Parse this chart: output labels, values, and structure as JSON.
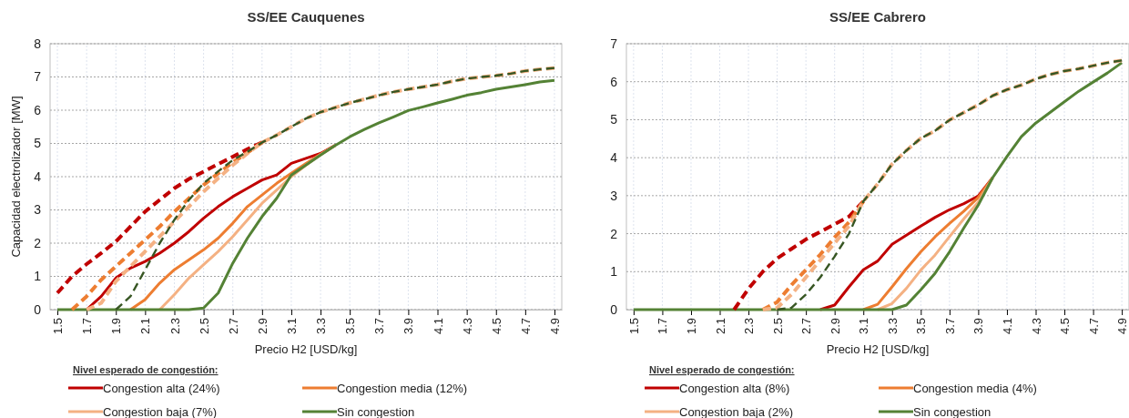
{
  "chart_data": [
    {
      "type": "line",
      "title": "SS/EE Cauquenes",
      "xlabel": "Precio H2 [USD/kg]",
      "ylabel": "Capacidad electrolizador [MW]",
      "legend_title": "Nivel esperado de congestión:",
      "legend": "bottom",
      "grid": true,
      "x": [
        1.5,
        1.6,
        1.7,
        1.8,
        1.9,
        2.0,
        2.1,
        2.2,
        2.3,
        2.4,
        2.5,
        2.6,
        2.7,
        2.8,
        2.9,
        3.0,
        3.1,
        3.2,
        3.3,
        3.4,
        3.5,
        3.6,
        3.7,
        3.8,
        3.9,
        4.0,
        4.1,
        4.2,
        4.3,
        4.4,
        4.5,
        4.6,
        4.7,
        4.8,
        4.9
      ],
      "xlim": [
        1.45,
        4.95
      ],
      "xticks": [
        1.5,
        1.7,
        1.9,
        2.1,
        2.3,
        2.5,
        2.7,
        2.9,
        3.1,
        3.3,
        3.5,
        3.7,
        3.9,
        4.1,
        4.3,
        4.5,
        4.7,
        4.9
      ],
      "ylim": [
        0,
        8
      ],
      "yticks": [
        0,
        1,
        2,
        3,
        4,
        5,
        6,
        7,
        8
      ],
      "series": [
        {
          "name": "Congestion alta (24%)",
          "color": "#c00000",
          "line_style": "solid",
          "values": [
            null,
            null,
            0,
            0.4,
            0.95,
            1.25,
            1.45,
            1.7,
            2.0,
            2.35,
            2.75,
            3.1,
            3.4,
            3.65,
            3.9,
            4.05,
            4.4,
            4.55,
            4.7,
            4.94,
            null,
            null,
            null,
            null,
            null,
            null,
            null,
            null,
            null,
            null,
            null,
            null,
            null,
            null,
            null
          ]
        },
        {
          "name": "Congestion media (12%)",
          "color": "#ed7d31",
          "line_style": "solid",
          "values": [
            null,
            null,
            null,
            null,
            null,
            0,
            0.3,
            0.8,
            1.2,
            1.5,
            1.8,
            2.15,
            2.6,
            3.1,
            3.45,
            3.8,
            4.1,
            4.4,
            4.68,
            4.94,
            null,
            null,
            null,
            null,
            null,
            null,
            null,
            null,
            null,
            null,
            null,
            null,
            null,
            null,
            null
          ]
        },
        {
          "name": "Congestion baja (7%)",
          "color": "#f4b183",
          "line_style": "solid",
          "values": [
            null,
            null,
            null,
            null,
            null,
            null,
            null,
            0,
            0.45,
            0.95,
            1.35,
            1.75,
            2.2,
            2.7,
            3.2,
            3.6,
            4.0,
            4.35,
            4.66,
            4.94,
            null,
            null,
            null,
            null,
            null,
            null,
            null,
            null,
            null,
            null,
            null,
            null,
            null,
            null,
            null
          ]
        },
        {
          "name": "Sin congestion",
          "color": "#548235",
          "line_style": "solid",
          "values": [
            0,
            0,
            0,
            0,
            0,
            0,
            0,
            0,
            0,
            0,
            0.05,
            0.5,
            1.4,
            2.15,
            2.8,
            3.35,
            4.05,
            4.35,
            4.65,
            4.94,
            5.2,
            5.42,
            5.62,
            5.8,
            5.99,
            6.1,
            6.22,
            6.33,
            6.45,
            6.53,
            6.63,
            6.7,
            6.77,
            6.85,
            6.9
          ]
        },
        {
          "color": "#c00000",
          "line_style": "dashed",
          "values": [
            0.5,
            1.0,
            1.37,
            1.7,
            2.05,
            2.5,
            2.95,
            3.3,
            3.65,
            3.93,
            4.15,
            4.38,
            4.6,
            4.83,
            5.03,
            null,
            null,
            null,
            null,
            null,
            null,
            null,
            null,
            null,
            null,
            null,
            null,
            null,
            null,
            null,
            null,
            null,
            null,
            null,
            null
          ]
        },
        {
          "color": "#ed7d31",
          "line_style": "dashed",
          "values": [
            null,
            0,
            0.4,
            0.9,
            1.3,
            1.7,
            2.1,
            2.5,
            2.95,
            3.35,
            3.75,
            4.1,
            4.43,
            4.72,
            5.03,
            null,
            null,
            null,
            null,
            null,
            null,
            null,
            null,
            null,
            null,
            null,
            null,
            null,
            null,
            null,
            null,
            null,
            null,
            null,
            null
          ]
        },
        {
          "color": "#f4b183",
          "line_style": "dashed",
          "values": [
            null,
            null,
            0,
            0.2,
            0.85,
            1.3,
            1.75,
            2.2,
            2.65,
            3.1,
            3.55,
            3.95,
            4.35,
            4.7,
            5.03,
            5.25,
            5.5,
            5.75,
            5.94,
            6.08,
            6.22,
            6.33,
            6.45,
            6.55,
            6.63,
            6.7,
            6.77,
            6.87,
            6.95,
            7.0,
            7.04,
            7.1,
            7.18,
            7.23,
            7.27
          ]
        },
        {
          "color": "#375623",
          "line_style": "dashed",
          "values": [
            null,
            null,
            null,
            null,
            0,
            0.4,
            1.2,
            2.0,
            2.7,
            3.3,
            3.8,
            4.16,
            4.5,
            4.75,
            5.03,
            5.25,
            5.5,
            5.75,
            5.94,
            6.08,
            6.22,
            6.33,
            6.45,
            6.55,
            6.63,
            6.7,
            6.77,
            6.87,
            6.95,
            7.0,
            7.04,
            7.1,
            7.18,
            7.23,
            7.27
          ]
        }
      ]
    },
    {
      "type": "line",
      "title": "SS/EE Cabrero",
      "xlabel": "Precio H2 [USD/kg]",
      "legend_title": "Nivel esperado de congestión:",
      "legend": "bottom",
      "grid": true,
      "x": [
        1.5,
        1.6,
        1.7,
        1.8,
        1.9,
        2.0,
        2.1,
        2.2,
        2.3,
        2.4,
        2.5,
        2.6,
        2.7,
        2.8,
        2.9,
        3.0,
        3.1,
        3.2,
        3.3,
        3.4,
        3.5,
        3.6,
        3.7,
        3.8,
        3.9,
        4.0,
        4.1,
        4.2,
        4.3,
        4.4,
        4.5,
        4.6,
        4.7,
        4.8,
        4.9
      ],
      "xlim": [
        1.45,
        4.95
      ],
      "xticks": [
        1.5,
        1.7,
        1.9,
        2.1,
        2.3,
        2.5,
        2.7,
        2.9,
        3.1,
        3.3,
        3.5,
        3.7,
        3.9,
        4.1,
        4.3,
        4.5,
        4.7,
        4.9
      ],
      "ylim": [
        0,
        7
      ],
      "yticks": [
        0,
        1,
        2,
        3,
        4,
        5,
        6,
        7
      ],
      "series": [
        {
          "name": "Congestion alta (8%)",
          "color": "#c00000",
          "line_style": "solid",
          "values": [
            null,
            null,
            null,
            null,
            null,
            null,
            null,
            null,
            null,
            null,
            null,
            null,
            null,
            0,
            0.12,
            0.6,
            1.05,
            1.28,
            1.72,
            1.96,
            2.2,
            2.43,
            2.63,
            2.79,
            2.99,
            3.47,
            null,
            null,
            null,
            null,
            null,
            null,
            null,
            null,
            null
          ]
        },
        {
          "name": "Congestion media (4%)",
          "color": "#ed7d31",
          "line_style": "solid",
          "values": [
            null,
            null,
            null,
            null,
            null,
            null,
            null,
            null,
            null,
            null,
            null,
            null,
            null,
            null,
            null,
            null,
            0,
            0.14,
            0.6,
            1.08,
            1.52,
            1.92,
            2.27,
            2.59,
            2.95,
            3.47,
            null,
            null,
            null,
            null,
            null,
            null,
            null,
            null,
            null
          ]
        },
        {
          "name": "Congestion baja (2%)",
          "color": "#f4b183",
          "line_style": "solid",
          "values": [
            null,
            null,
            null,
            null,
            null,
            null,
            null,
            null,
            null,
            null,
            null,
            null,
            null,
            null,
            null,
            null,
            null,
            0,
            0.16,
            0.56,
            1.04,
            1.44,
            1.92,
            2.39,
            2.83,
            3.47,
            null,
            null,
            null,
            null,
            null,
            null,
            null,
            null,
            null
          ]
        },
        {
          "name": "Sin congestion",
          "color": "#548235",
          "line_style": "solid",
          "values": [
            0,
            0,
            0,
            0,
            0,
            0,
            0,
            0,
            0,
            0,
            0,
            0,
            0,
            0,
            0,
            0,
            0,
            0,
            0,
            0.12,
            0.52,
            0.96,
            1.52,
            2.15,
            2.75,
            3.47,
            4.03,
            4.55,
            4.91,
            5.19,
            5.47,
            5.75,
            5.99,
            6.23,
            6.5
          ]
        },
        {
          "color": "#c00000",
          "line_style": "dashed",
          "values": [
            null,
            null,
            null,
            null,
            null,
            null,
            null,
            0,
            0.55,
            1.0,
            1.35,
            1.6,
            1.85,
            2.05,
            2.25,
            2.45,
            2.85,
            null,
            null,
            null,
            null,
            null,
            null,
            null,
            null,
            null,
            null,
            null,
            null,
            null,
            null,
            null,
            null,
            null,
            null
          ]
        },
        {
          "color": "#ed7d31",
          "line_style": "dashed",
          "values": [
            null,
            null,
            null,
            null,
            null,
            null,
            null,
            null,
            null,
            0,
            0.2,
            0.65,
            1.05,
            1.45,
            1.9,
            2.3,
            2.85,
            null,
            null,
            null,
            null,
            null,
            null,
            null,
            null,
            null,
            null,
            null,
            null,
            null,
            null,
            null,
            null,
            null,
            null
          ]
        },
        {
          "color": "#f4b183",
          "line_style": "dashed",
          "values": [
            null,
            null,
            null,
            null,
            null,
            null,
            null,
            null,
            null,
            0,
            0.05,
            0.4,
            0.85,
            1.3,
            1.75,
            2.2,
            2.85,
            3.31,
            3.83,
            4.19,
            4.51,
            4.71,
            4.99,
            5.19,
            5.39,
            5.63,
            5.79,
            5.91,
            6.07,
            6.19,
            6.28,
            6.34,
            6.42,
            6.5,
            6.56
          ]
        },
        {
          "color": "#375623",
          "line_style": "dashed",
          "values": [
            null,
            null,
            null,
            null,
            null,
            null,
            null,
            null,
            null,
            null,
            0,
            0.05,
            0.4,
            0.85,
            1.4,
            2.0,
            2.85,
            3.31,
            3.83,
            4.19,
            4.51,
            4.71,
            4.99,
            5.19,
            5.39,
            5.63,
            5.79,
            5.91,
            6.07,
            6.19,
            6.28,
            6.34,
            6.42,
            6.5,
            6.56
          ]
        }
      ]
    }
  ]
}
